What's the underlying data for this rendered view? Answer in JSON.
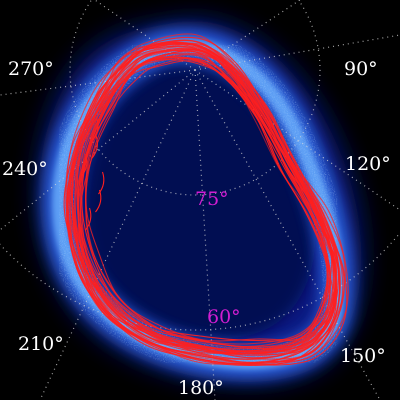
{
  "image": {
    "subject": "auroral-oval",
    "colors": {
      "background": "#000000",
      "emission_dim": "#0a1a80",
      "emission_bright": "#4ea6ff",
      "oval_tracks": "#ff1f1f",
      "grid": "#d9d9d9",
      "longitude_label": "#ffffff",
      "latitude_label": "#d21dd2"
    }
  },
  "labels": {
    "longitude": {
      "lon_270": "270°",
      "lon_90": "90°",
      "lon_240": "240°",
      "lon_120": "120°",
      "lon_210": "210°",
      "lon_150": "150°",
      "lon_180": "180°"
    },
    "latitude": {
      "lat_75": "75°",
      "lat_60": "60°"
    }
  }
}
